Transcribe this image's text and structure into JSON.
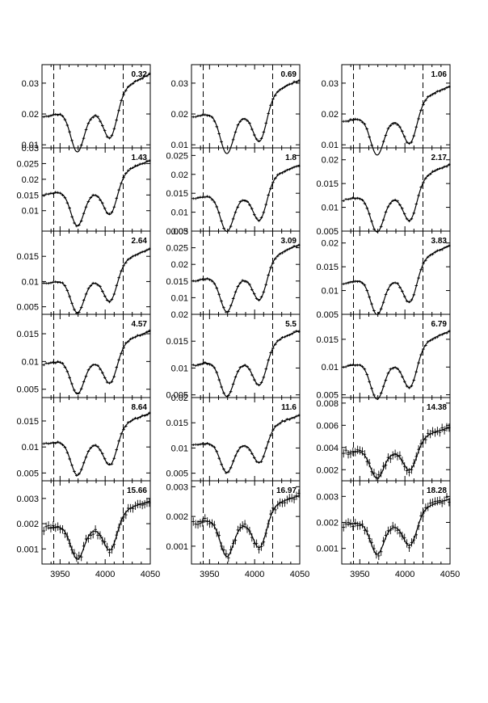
{
  "chart_data": {
    "type": "line",
    "x_tick_labels": [
      "3950",
      "4000",
      "4050"
    ],
    "xlim": [
      3930,
      4050
    ],
    "dashed_lines_x": [
      3943,
      4020
    ],
    "panels": [
      {
        "label": "0.32",
        "ylim": [
          0.009,
          0.036
        ],
        "yticks": [
          0.01,
          0.02,
          0.03
        ],
        "ytick_labels": [
          "0.01",
          "0.02",
          "0.03"
        ],
        "baseline_start": 0.019,
        "baseline_end": 0.033,
        "depth": 0.013
      },
      {
        "label": "0.69",
        "ylim": [
          0.009,
          0.036
        ],
        "yticks": [
          0.01,
          0.02,
          0.03
        ],
        "ytick_labels": [
          "0.01",
          "0.02",
          "0.03"
        ],
        "baseline_start": 0.019,
        "baseline_end": 0.031,
        "depth": 0.013
      },
      {
        "label": "1.06",
        "ylim": [
          0.009,
          0.036
        ],
        "yticks": [
          0.01,
          0.02,
          0.03
        ],
        "ytick_labels": [
          "0.01",
          "0.02",
          "0.03"
        ],
        "baseline_start": 0.0175,
        "baseline_end": 0.029,
        "depth": 0.012
      },
      {
        "label": "1.43",
        "ylim": [
          0.0035,
          0.03
        ],
        "yticks": [
          0.01,
          0.015,
          0.02,
          0.025,
          0.03
        ],
        "ytick_labels": [
          "0.01",
          "0.015",
          "0.02",
          "0.025",
          "0.03"
        ],
        "baseline_start": 0.015,
        "baseline_end": 0.026,
        "depth": 0.011
      },
      {
        "label": "1.8",
        "ylim": [
          0.005,
          0.027
        ],
        "yticks": [
          0.005,
          0.01,
          0.015,
          0.02,
          0.025
        ],
        "ytick_labels": [
          "0.005",
          "0.01",
          "0.015",
          "0.02",
          "0.025"
        ],
        "baseline_start": 0.0135,
        "baseline_end": 0.0225,
        "depth": 0.0095
      },
      {
        "label": "2.17",
        "ylim": [
          0.005,
          0.0225
        ],
        "yticks": [
          0.005,
          0.01,
          0.015,
          0.02
        ],
        "ytick_labels": [
          "0.005",
          "0.01",
          "0.015",
          "0.02"
        ],
        "baseline_start": 0.0115,
        "baseline_end": 0.019,
        "depth": 0.0075
      },
      {
        "label": "2.64",
        "ylim": [
          0.0035,
          0.02
        ],
        "yticks": [
          0.005,
          0.01,
          0.015
        ],
        "ytick_labels": [
          "0.005",
          "0.01",
          "0.015"
        ],
        "baseline_start": 0.0095,
        "baseline_end": 0.0165,
        "depth": 0.0065
      },
      {
        "label": "3.09",
        "ylim": [
          0.005,
          0.03
        ],
        "yticks": [
          0.01,
          0.015,
          0.02,
          0.025,
          0.03
        ],
        "ytick_labels": [
          "0.01",
          "0.015",
          "0.02",
          "0.025",
          "0.03"
        ],
        "baseline_start": 0.015,
        "baseline_end": 0.026,
        "depth": 0.0105
      },
      {
        "label": "3.83",
        "ylim": [
          0.005,
          0.0225
        ],
        "yticks": [
          0.005,
          0.01,
          0.015,
          0.02
        ],
        "ytick_labels": [
          "0.005",
          "0.01",
          "0.015",
          "0.02"
        ],
        "baseline_start": 0.0115,
        "baseline_end": 0.0195,
        "depth": 0.0075
      },
      {
        "label": "4.57",
        "ylim": [
          0.0035,
          0.0185
        ],
        "yticks": [
          0.005,
          0.01,
          0.015
        ],
        "ytick_labels": [
          "0.005",
          "0.01",
          "0.015"
        ],
        "baseline_start": 0.0095,
        "baseline_end": 0.0155,
        "depth": 0.006
      },
      {
        "label": "5.5",
        "ylim": [
          0.0045,
          0.02
        ],
        "yticks": [
          0.005,
          0.01,
          0.015,
          0.02
        ],
        "ytick_labels": [
          "0.005",
          "0.01",
          "0.015",
          "0.02"
        ],
        "baseline_start": 0.0105,
        "baseline_end": 0.017,
        "depth": 0.0065
      },
      {
        "label": "6.79",
        "ylim": [
          0.0045,
          0.0195
        ],
        "yticks": [
          0.005,
          0.01,
          0.015
        ],
        "ytick_labels": [
          "0.005",
          "0.01",
          "0.015"
        ],
        "baseline_start": 0.01,
        "baseline_end": 0.0165,
        "depth": 0.0065
      },
      {
        "label": "8.64",
        "ylim": [
          0.0035,
          0.0195
        ],
        "yticks": [
          0.005,
          0.01,
          0.015
        ],
        "ytick_labels": [
          "0.005",
          "0.01",
          "0.015"
        ],
        "baseline_start": 0.0105,
        "baseline_end": 0.0165,
        "depth": 0.0065
      },
      {
        "label": "11.6",
        "ylim": [
          0.0035,
          0.02
        ],
        "yticks": [
          0.005,
          0.01,
          0.015,
          0.02
        ],
        "ytick_labels": [
          "0.005",
          "0.01",
          "0.015",
          "0.02"
        ],
        "baseline_start": 0.0105,
        "baseline_end": 0.0165,
        "depth": 0.006
      },
      {
        "label": "14.38",
        "ylim": [
          0.001,
          0.0085
        ],
        "yticks": [
          0.002,
          0.004,
          0.006,
          0.008
        ],
        "ytick_labels": [
          "0.002",
          "0.004",
          "0.006",
          "0.008"
        ],
        "baseline_start": 0.0035,
        "baseline_end": 0.0058,
        "depth": 0.0025
      },
      {
        "label": "15.66",
        "ylim": [
          0.0004,
          0.0037
        ],
        "yticks": [
          0.001,
          0.002,
          0.003
        ],
        "ytick_labels": [
          "0.001",
          "0.002",
          "0.003"
        ],
        "baseline_start": 0.0018,
        "baseline_end": 0.0029,
        "depth": 0.0013
      },
      {
        "label": "16.97",
        "ylim": [
          0.0004,
          0.0032
        ],
        "yticks": [
          0.001,
          0.002,
          0.003
        ],
        "ytick_labels": [
          "0.001",
          "0.002",
          "0.003"
        ],
        "baseline_start": 0.0018,
        "baseline_end": 0.0027,
        "depth": 0.0012
      },
      {
        "label": "18.28",
        "ylim": [
          0.0004,
          0.0036
        ],
        "yticks": [
          0.001,
          0.002,
          0.003
        ],
        "ytick_labels": [
          "0.001",
          "0.002",
          "0.003"
        ],
        "baseline_start": 0.0019,
        "baseline_end": 0.0029,
        "depth": 0.0012
      }
    ]
  }
}
